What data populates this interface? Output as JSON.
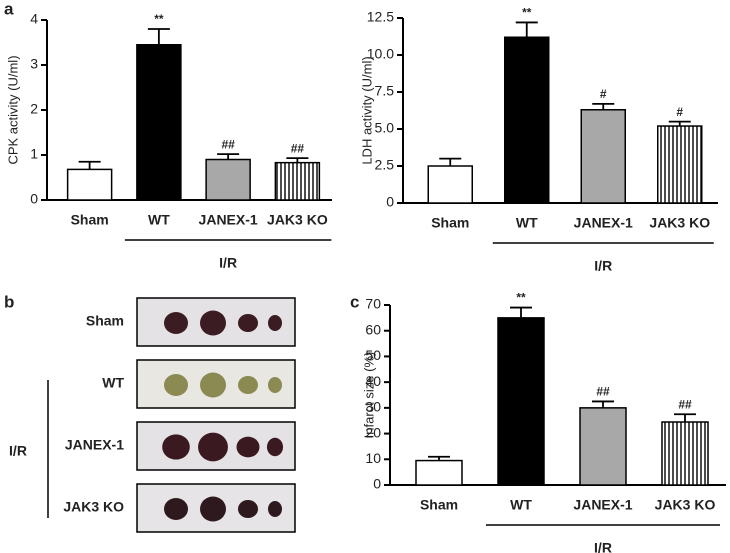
{
  "panel_labels": [
    "a",
    "b",
    "c"
  ],
  "chart_data": [
    {
      "type": "bar",
      "ylabel": "CPK activity (U/ml)",
      "categories": [
        "Sham",
        "WT",
        "JANEX-1",
        "JAK3 KO"
      ],
      "values": [
        0.68,
        3.45,
        0.9,
        0.83
      ],
      "errors": [
        0.17,
        0.35,
        0.12,
        0.1
      ],
      "annotations": [
        null,
        "**",
        "##",
        "##"
      ],
      "colors": [
        "#ffffff",
        "#000000",
        "#a8a8a8",
        "#ffffff"
      ],
      "patterns": [
        null,
        null,
        null,
        "vertical-lines"
      ],
      "group_label": "I/R",
      "ylim": [
        0,
        4
      ],
      "yticks": [
        0,
        1,
        2,
        3,
        4
      ]
    },
    {
      "type": "bar",
      "ylabel": "LDH activity (U/ml)",
      "categories": [
        "Sham",
        "WT",
        "JANEX-1",
        "JAK3 KO"
      ],
      "values": [
        2.5,
        11.2,
        6.3,
        5.2
      ],
      "errors": [
        0.5,
        1.0,
        0.4,
        0.3
      ],
      "annotations": [
        null,
        "**",
        "#",
        "#"
      ],
      "colors": [
        "#ffffff",
        "#000000",
        "#a8a8a8",
        "#ffffff"
      ],
      "patterns": [
        null,
        null,
        null,
        "vertical-lines"
      ],
      "group_label": "I/R",
      "ylim": [
        0,
        12.5
      ],
      "yticks": [
        0,
        2.5,
        {
          "value": 5,
          "label": "5.0"
        },
        7.5,
        {
          "value": 10,
          "label": "10.0"
        },
        12.5
      ]
    },
    {
      "type": "bar",
      "ylabel": "Infarct size (%)",
      "categories": [
        "Sham",
        "WT",
        "JANEX-1",
        "JAK3 KO"
      ],
      "values": [
        9.5,
        65,
        30,
        24.5
      ],
      "errors": [
        1.5,
        4,
        2.5,
        3
      ],
      "annotations": [
        null,
        "**",
        "##",
        "##"
      ],
      "colors": [
        "#ffffff",
        "#000000",
        "#a8a8a8",
        "#ffffff"
      ],
      "patterns": [
        null,
        null,
        null,
        "vertical-lines"
      ],
      "group_label": "I/R",
      "ylim": [
        0,
        70
      ],
      "yticks": [
        0,
        10,
        20,
        30,
        40,
        50,
        60,
        70
      ]
    }
  ],
  "photo_panel": {
    "rows": [
      "Sham",
      "WT",
      "JANEX-1",
      "JAK3 KO"
    ],
    "group_label": "I/R"
  }
}
